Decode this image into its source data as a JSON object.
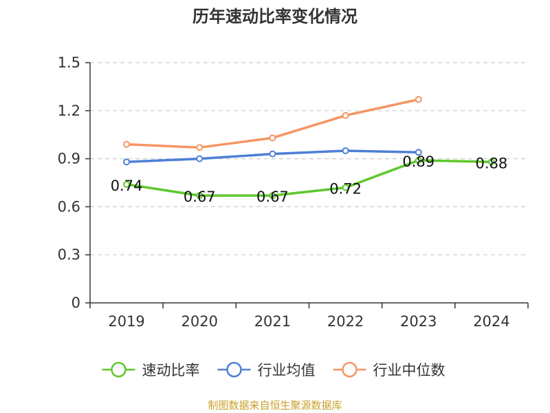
{
  "chart_data": {
    "type": "line",
    "title": "历年速动比率变化情况",
    "categories": [
      "2019",
      "2020",
      "2021",
      "2022",
      "2023",
      "2024"
    ],
    "ylim": [
      0,
      1.5
    ],
    "yticks": [
      "0",
      "0.3",
      "0.6",
      "0.9",
      "1.2",
      "1.5"
    ],
    "grid": true,
    "legend_position": "bottom",
    "series": [
      {
        "name": "速动比率",
        "color": "#5ec72c",
        "values": [
          0.74,
          0.67,
          0.67,
          0.72,
          0.89,
          0.88
        ],
        "show_labels": true
      },
      {
        "name": "行业均值",
        "color": "#4e7fd8",
        "values": [
          0.88,
          0.9,
          0.93,
          0.95,
          0.94,
          null
        ],
        "show_labels": false
      },
      {
        "name": "行业中位数",
        "color": "#f59563",
        "values": [
          0.99,
          0.97,
          1.03,
          1.17,
          1.27,
          null
        ],
        "show_labels": false
      }
    ],
    "source": "制图数据来自恒生聚源数据库"
  }
}
